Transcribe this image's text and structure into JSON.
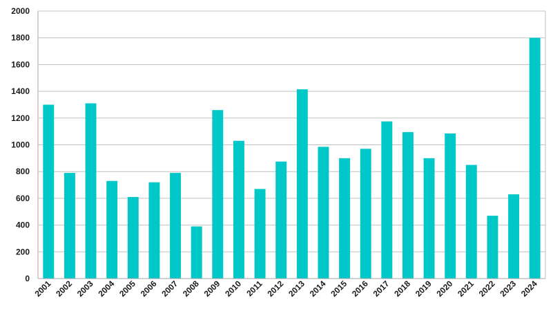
{
  "chart_data": {
    "type": "bar",
    "categories": [
      "2001",
      "2002",
      "2003",
      "2004",
      "2005",
      "2006",
      "2007",
      "2008",
      "2009",
      "2010",
      "2011",
      "2012",
      "2013",
      "2014",
      "2015",
      "2016",
      "2017",
      "2018",
      "2019",
      "2020",
      "2021",
      "2022",
      "2023",
      "2024"
    ],
    "values": [
      1300,
      790,
      1310,
      730,
      610,
      720,
      790,
      390,
      1260,
      1030,
      670,
      875,
      1415,
      985,
      900,
      970,
      1175,
      1095,
      900,
      1085,
      850,
      470,
      630,
      1800
    ],
    "title": "",
    "xlabel": "",
    "ylabel": "",
    "ylim": [
      0,
      2000
    ],
    "yticks": [
      "0",
      "200",
      "400",
      "600",
      "800",
      "1000",
      "1200",
      "1400",
      "1600",
      "1800",
      "2000"
    ],
    "grid": true,
    "legend": "none",
    "bar_color": "#00C8C8",
    "grid_color": "#C0C0C0",
    "axis_color": "#A6A6A6"
  }
}
